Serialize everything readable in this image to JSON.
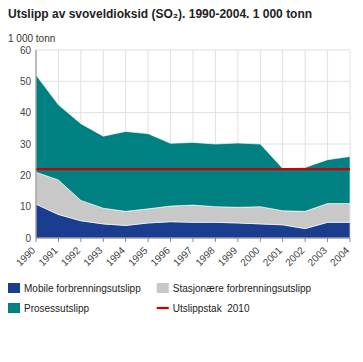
{
  "chart_data": {
    "type": "area",
    "stacked": true,
    "title": "Utslipp av svoveldioksid (SO₂). 1990-2004. 1 000 tonn",
    "y_label": "1 000 tonn",
    "x": [
      1990,
      1991,
      1992,
      1993,
      1994,
      1995,
      1996,
      1997,
      1998,
      1999,
      2000,
      2001,
      2002,
      2003,
      2004
    ],
    "xlim": [
      1990,
      2004
    ],
    "xticks": [
      1990,
      1991,
      1992,
      1993,
      1994,
      1995,
      1996,
      1997,
      1998,
      1999,
      2000,
      2001,
      2002,
      2003,
      2004
    ],
    "ylim": [
      0,
      60
    ],
    "yticks": [
      0,
      10,
      20,
      30,
      40,
      50,
      60
    ],
    "grid": true,
    "legend": "bottom",
    "series": [
      {
        "name": "Mobile forbrenningsutslipp",
        "color": "#1a3d8f",
        "values": [
          10.8,
          7.5,
          5.5,
          4.5,
          4.0,
          4.8,
          5.2,
          5.0,
          5.0,
          4.8,
          4.5,
          4.2,
          3.0,
          5.0,
          5.0
        ]
      },
      {
        "name": "Stasjonære forbrenningsutslipp",
        "color": "#c8c8c8",
        "values": [
          10.2,
          11.0,
          6.5,
          5.0,
          4.5,
          4.5,
          5.0,
          5.5,
          5.0,
          5.0,
          5.5,
          4.5,
          5.5,
          6.0,
          6.0
        ]
      },
      {
        "name": "Prosessutslipp",
        "color": "#008080",
        "values": [
          31.0,
          24.0,
          24.5,
          23.0,
          25.5,
          24.0,
          20.0,
          20.0,
          20.0,
          20.5,
          20.0,
          13.5,
          14.0,
          14.0,
          15.0
        ]
      }
    ],
    "reference_lines": [
      {
        "name": "Utslippstak  2010",
        "value": 22.0,
        "color": "#cc0000"
      }
    ]
  }
}
